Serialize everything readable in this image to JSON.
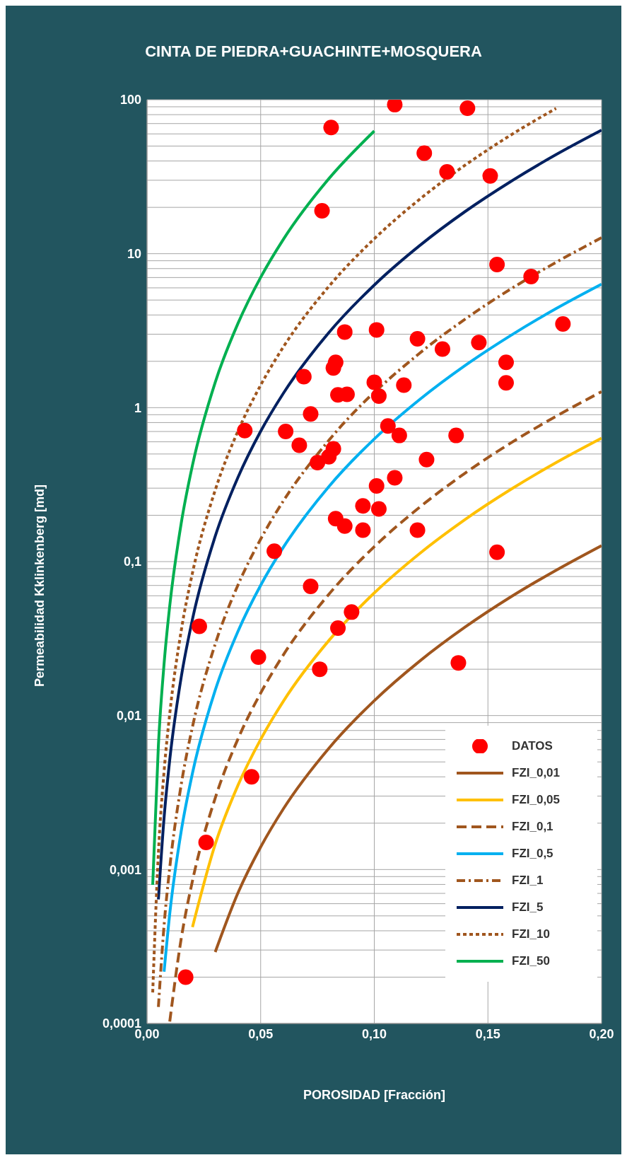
{
  "chart_data": {
    "type": "line",
    "title": "CINTA DE PIEDRA+GUACHINTE+MOSQUERA",
    "xlabel": "POROSIDAD [Fracción]",
    "ylabel": "Permeabilidad Kklinkenberg [md]",
    "log": "y",
    "grid": true,
    "legend": "bottom right",
    "xlim": [
      0,
      0.2
    ],
    "xticks": [
      {
        "value": 0,
        "label": "0,00"
      },
      {
        "value": 0.05,
        "label": "0,05"
      },
      {
        "value": 0.1,
        "label": "0,10"
      },
      {
        "value": 0.15,
        "label": "0,15"
      },
      {
        "value": 0.2,
        "label": "0,20"
      }
    ],
    "ylim": [
      0.0001,
      100
    ],
    "yticks": [
      {
        "value": 0.0001,
        "label": "0,0001"
      },
      {
        "value": 0.0002,
        "label": null
      },
      {
        "value": 0.0003,
        "label": null
      },
      {
        "value": 0.0004,
        "label": null
      },
      {
        "value": 0.0005,
        "label": null
      },
      {
        "value": 0.0006,
        "label": null
      },
      {
        "value": 0.0007,
        "label": null
      },
      {
        "value": 0.0008,
        "label": null
      },
      {
        "value": 0.0009,
        "label": null
      },
      {
        "value": 0.001,
        "label": "0,001"
      },
      {
        "value": 0.002,
        "label": null
      },
      {
        "value": 0.003,
        "label": null
      },
      {
        "value": 0.004,
        "label": null
      },
      {
        "value": 0.005,
        "label": null
      },
      {
        "value": 0.006,
        "label": null
      },
      {
        "value": 0.007,
        "label": null
      },
      {
        "value": 0.008,
        "label": null
      },
      {
        "value": 0.009,
        "label": null
      },
      {
        "value": 0.01,
        "label": "0,01"
      },
      {
        "value": 0.02,
        "label": null
      },
      {
        "value": 0.03,
        "label": null
      },
      {
        "value": 0.04,
        "label": null
      },
      {
        "value": 0.05,
        "label": null
      },
      {
        "value": 0.06,
        "label": null
      },
      {
        "value": 0.07,
        "label": null
      },
      {
        "value": 0.08,
        "label": null
      },
      {
        "value": 0.09,
        "label": null
      },
      {
        "value": 0.1,
        "label": "0,1"
      },
      {
        "value": 0.2,
        "label": null
      },
      {
        "value": 0.3,
        "label": null
      },
      {
        "value": 0.4,
        "label": null
      },
      {
        "value": 0.5,
        "label": null
      },
      {
        "value": 0.6,
        "label": null
      },
      {
        "value": 0.7,
        "label": null
      },
      {
        "value": 0.8,
        "label": null
      },
      {
        "value": 0.9,
        "label": null
      },
      {
        "value": 1,
        "label": "1"
      },
      {
        "value": 2,
        "label": null
      },
      {
        "value": 3,
        "label": null
      },
      {
        "value": 4,
        "label": null
      },
      {
        "value": 5,
        "label": null
      },
      {
        "value": 6,
        "label": null
      },
      {
        "value": 7,
        "label": null
      },
      {
        "value": 8,
        "label": null
      },
      {
        "value": 9,
        "label": null
      },
      {
        "value": 10,
        "label": "10"
      },
      {
        "value": 20,
        "label": null
      },
      {
        "value": 30,
        "label": null
      },
      {
        "value": 40,
        "label": null
      },
      {
        "value": 50,
        "label": null
      },
      {
        "value": 60,
        "label": null
      },
      {
        "value": 70,
        "label": null
      },
      {
        "value": 80,
        "label": null
      },
      {
        "value": 90,
        "label": null
      },
      {
        "value": 100,
        "label": "100"
      }
    ],
    "series": [
      {
        "name": "DATOS",
        "type": "scatter",
        "marker": "circle",
        "color": "#ff0000",
        "x": [
          0.109,
          0.081,
          0.141,
          0.122,
          0.132,
          0.151,
          0.077,
          0.154,
          0.169,
          0.183,
          0.087,
          0.101,
          0.119,
          0.13,
          0.146,
          0.083,
          0.082,
          0.069,
          0.158,
          0.158,
          0.1,
          0.113,
          0.084,
          0.088,
          0.102,
          0.072,
          0.043,
          0.061,
          0.106,
          0.111,
          0.136,
          0.067,
          0.082,
          0.08,
          0.075,
          0.123,
          0.109,
          0.101,
          0.095,
          0.102,
          0.083,
          0.087,
          0.095,
          0.119,
          0.056,
          0.154,
          0.072,
          0.09,
          0.023,
          0.084,
          0.049,
          0.137,
          0.076,
          0.046,
          0.026,
          0.017
        ],
        "values": [
          93,
          66,
          88,
          45,
          34,
          32,
          19,
          8.5,
          7.1,
          3.5,
          3.1,
          3.2,
          2.8,
          2.4,
          2.65,
          1.97,
          1.81,
          1.59,
          1.97,
          1.45,
          1.46,
          1.4,
          1.21,
          1.22,
          1.19,
          0.91,
          0.71,
          0.7,
          0.76,
          0.66,
          0.66,
          0.57,
          0.54,
          0.48,
          0.44,
          0.46,
          0.35,
          0.31,
          0.23,
          0.22,
          0.19,
          0.17,
          0.16,
          0.16,
          0.117,
          0.115,
          0.069,
          0.047,
          0.038,
          0.037,
          0.024,
          0.022,
          0.02,
          0.004,
          0.0015,
          0.0002
        ]
      },
      {
        "name": "FZI_0,01",
        "color": "#a0561e",
        "line_style": "solid",
        "marker": "none",
        "x": [
          0.03,
          0.04,
          0.05,
          0.06,
          0.08,
          0.1,
          0.12,
          0.14,
          0.16,
          0.18,
          0.2
        ],
        "values": [
          0.000291,
          0.000704,
          0.0014,
          0.00248,
          0.00613,
          0.0125,
          0.0226,
          0.0376,
          0.0589,
          0.0879,
          0.127
        ]
      },
      {
        "name": "FZI_0,05",
        "color": "#ffc000",
        "line_style": "solid",
        "marker": "none",
        "x": [
          0.02,
          0.03,
          0.04,
          0.05,
          0.06,
          0.08,
          0.1,
          0.12,
          0.14,
          0.16,
          0.18,
          0.2
        ],
        "values": [
          0.000423,
          0.00146,
          0.00352,
          0.007,
          0.0124,
          0.0307,
          0.0626,
          0.113,
          0.188,
          0.294,
          0.44,
          0.634
        ]
      },
      {
        "name": "FZI_0,1",
        "color": "#a0561e",
        "line_style": "dashed",
        "marker": "none",
        "x": [
          0.01,
          0.015,
          0.02,
          0.03,
          0.04,
          0.05,
          0.06,
          0.08,
          0.1,
          0.12,
          0.14,
          0.16,
          0.18,
          0.2
        ],
        "values": [
          0.000103,
          0.000353,
          0.000845,
          0.00291,
          0.00704,
          0.014,
          0.0248,
          0.0613,
          0.125,
          0.226,
          0.376,
          0.589,
          0.879,
          1.27
        ]
      },
      {
        "name": "FZI_0,5",
        "color": "#00b0f0",
        "line_style": "solid",
        "marker": "none",
        "x": [
          0.0075,
          0.01,
          0.015,
          0.02,
          0.03,
          0.04,
          0.05,
          0.06,
          0.08,
          0.1,
          0.12,
          0.14,
          0.16,
          0.18,
          0.2
        ],
        "values": [
          0.000217,
          0.000517,
          0.00176,
          0.00423,
          0.0146,
          0.0352,
          0.0702,
          0.124,
          0.307,
          0.626,
          1.13,
          1.88,
          2.94,
          4.4,
          6.34
        ]
      },
      {
        "name": "FZI_1",
        "color": "#a0561e",
        "line_style": "dashdot",
        "marker": "none",
        "x": [
          0.005,
          0.0075,
          0.01,
          0.015,
          0.02,
          0.03,
          0.04,
          0.05,
          0.06,
          0.08,
          0.12,
          0.14,
          0.16,
          0.18,
          0.2
        ],
        "values": [
          0.000128,
          0.000434,
          0.00103,
          0.00353,
          0.00845,
          0.0291,
          0.0704,
          0.14,
          0.248,
          0.613,
          2.26,
          3.76,
          5.89,
          8.79,
          12.7
        ]
      },
      {
        "name": "FZI_5",
        "color": "#002060",
        "line_style": "solid",
        "marker": "none",
        "x": [
          0.005,
          0.0075,
          0.01,
          0.015,
          0.02,
          0.03,
          0.04,
          0.05,
          0.06,
          0.08,
          0.1,
          0.12,
          0.14,
          0.16,
          0.18,
          0.2
        ],
        "values": [
          0.00064,
          0.00217,
          0.00517,
          0.0176,
          0.0423,
          0.146,
          0.352,
          0.702,
          1.24,
          3.07,
          6.26,
          11.3,
          18.8,
          29.4,
          44,
          63.4
        ]
      },
      {
        "name": "FZI_10",
        "color": "#a0561e",
        "line_style": "dotted",
        "marker": "none",
        "x": [
          0.0025,
          0.005,
          0.0075,
          0.01,
          0.015,
          0.02,
          0.03,
          0.04,
          0.05,
          0.06,
          0.08,
          0.1,
          0.12,
          0.14,
          0.16,
          0.18
        ],
        "values": [
          0.000159,
          0.00128,
          0.00434,
          0.0103,
          0.0353,
          0.0845,
          0.291,
          0.704,
          1.4,
          2.48,
          6.13,
          12.5,
          22.6,
          37.6,
          58.9,
          87.9
        ]
      },
      {
        "name": "FZI_50",
        "color": "#00b050",
        "line_style": "solid",
        "marker": "none",
        "x": [
          0.0025,
          0.005,
          0.0075,
          0.01,
          0.015,
          0.02,
          0.03,
          0.04,
          0.05,
          0.06,
          0.08,
          0.1
        ],
        "values": [
          0.000795,
          0.0064,
          0.0217,
          0.0517,
          0.176,
          0.423,
          1.46,
          3.52,
          7.02,
          12.4,
          30.7,
          62.6
        ]
      }
    ]
  }
}
